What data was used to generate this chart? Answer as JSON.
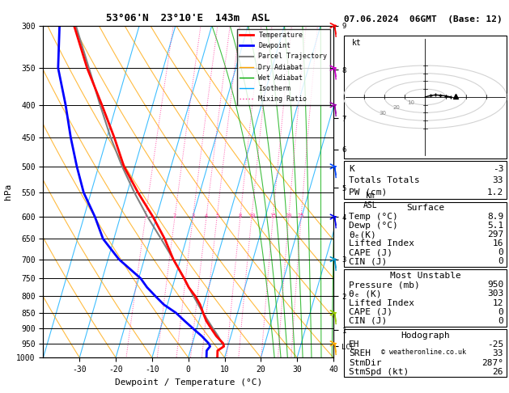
{
  "title_left": "53°06'N  23°10'E  143m  ASL",
  "title_right": "07.06.2024  06GMT  (Base: 12)",
  "xlabel": "Dewpoint / Temperature (°C)",
  "ylabel_left": "hPa",
  "pressure_ticks": [
    300,
    350,
    400,
    450,
    500,
    550,
    600,
    650,
    700,
    750,
    800,
    850,
    900,
    950,
    1000
  ],
  "temp_ticks": [
    -30,
    -20,
    -10,
    0,
    10,
    20,
    30,
    40
  ],
  "T_min": -40,
  "T_max": 40,
  "skew_factor": 22,
  "isotherm_temps": [
    -40,
    -30,
    -20,
    -10,
    0,
    10,
    20,
    30,
    40
  ],
  "dry_adiabat_theta": [
    -30,
    -20,
    -10,
    0,
    10,
    20,
    30,
    40,
    50,
    60,
    70
  ],
  "wet_adiabat_T_at_1000": [
    -20,
    -15,
    -10,
    -5,
    0,
    5,
    10,
    15,
    20,
    25,
    30
  ],
  "mixing_ratio_lines": [
    1,
    2,
    3,
    4,
    5,
    8,
    10,
    15,
    20,
    25
  ],
  "km_mapping": {
    "9": 300,
    "8": 352,
    "7": 420,
    "6": 470,
    "5": 540,
    "4": 600,
    "3": 700,
    "2": 800,
    "1": 905
  },
  "lcl_pressure": 960,
  "temperature_profile": {
    "pressure": [
      1000,
      975,
      960,
      950,
      925,
      900,
      875,
      850,
      825,
      800,
      775,
      750,
      700,
      650,
      600,
      550,
      500,
      450,
      400,
      350,
      300
    ],
    "temp_c": [
      8.0,
      7.5,
      8.9,
      8.5,
      6.0,
      4.0,
      2.0,
      0.5,
      -1.0,
      -3.0,
      -5.5,
      -7.5,
      -12.0,
      -16.0,
      -21.0,
      -27.0,
      -33.0,
      -38.0,
      -44.0,
      -51.0,
      -58.0
    ]
  },
  "dewpoint_profile": {
    "pressure": [
      1000,
      975,
      960,
      950,
      925,
      900,
      875,
      850,
      825,
      800,
      775,
      750,
      700,
      650,
      600,
      550,
      500,
      450,
      400,
      350,
      300
    ],
    "dewp_c": [
      5.0,
      4.5,
      5.1,
      4.5,
      2.0,
      -1.0,
      -4.0,
      -7.0,
      -11.0,
      -14.0,
      -17.0,
      -19.5,
      -27.0,
      -33.0,
      -37.0,
      -42.0,
      -46.0,
      -50.0,
      -54.0,
      -59.0,
      -62.0
    ]
  },
  "parcel_profile": {
    "pressure": [
      960,
      925,
      900,
      875,
      850,
      825,
      800,
      775,
      750,
      700,
      650,
      600,
      550,
      500,
      450,
      400,
      350,
      300
    ],
    "temp_c": [
      8.9,
      6.5,
      4.5,
      2.5,
      0.5,
      -1.5,
      -3.5,
      -5.5,
      -7.5,
      -12.0,
      -17.0,
      -22.5,
      -28.0,
      -33.5,
      -39.0,
      -44.5,
      -50.5,
      -57.5
    ]
  },
  "colors": {
    "temperature": "#FF0000",
    "dewpoint": "#0000FF",
    "parcel": "#808080",
    "dry_adiabat": "#FFA500",
    "wet_adiabat": "#00AA00",
    "isotherm": "#00AAFF",
    "mixing_ratio": "#FF40A0"
  },
  "legend_entries": [
    {
      "label": "Temperature",
      "color": "#FF0000",
      "lw": 2,
      "ls": "-"
    },
    {
      "label": "Dewpoint",
      "color": "#0000FF",
      "lw": 2,
      "ls": "-"
    },
    {
      "label": "Parcel Trajectory",
      "color": "#808080",
      "lw": 1.5,
      "ls": "-"
    },
    {
      "label": "Dry Adiabat",
      "color": "#FFA500",
      "lw": 1,
      "ls": "-"
    },
    {
      "label": "Wet Adiabat",
      "color": "#00AA00",
      "lw": 1,
      "ls": "-"
    },
    {
      "label": "Isotherm",
      "color": "#00AAFF",
      "lw": 1,
      "ls": "-"
    },
    {
      "label": "Mixing Ratio",
      "color": "#FF40A0",
      "lw": 1,
      "ls": ":"
    }
  ],
  "wind_barb_colors": [
    "#FF0000",
    "#CC00CC",
    "#9900CC",
    "#0000FF",
    "#0000FF",
    "#CC00CC",
    "#00AAAA",
    "#00CC00",
    "#99CC00",
    "#CCCC00",
    "#FFAA00"
  ],
  "wind_barb_pressures": [
    300,
    350,
    400,
    500,
    600,
    700,
    850,
    950
  ],
  "wind_barb_col": [
    "#FF0000",
    "#CC00CC",
    "#9900CC",
    "#3333FF",
    "#CC00CC",
    "#00AACC",
    "#99CC00",
    "#FFAA00"
  ],
  "info_panel": {
    "K": -3,
    "Totals_Totals": 33,
    "PW_cm": 1.2,
    "Surface_Temp": 8.9,
    "Surface_Dewp": 5.1,
    "Surface_theta_e": 297,
    "Surface_LI": 16,
    "Surface_CAPE": 0,
    "Surface_CIN": 0,
    "MU_Pressure": 950,
    "MU_theta_e": 303,
    "MU_LI": 12,
    "MU_CAPE": 0,
    "MU_CIN": 0,
    "EH": -25,
    "SREH": 33,
    "StmDir": 287,
    "StmSpd": 26
  }
}
